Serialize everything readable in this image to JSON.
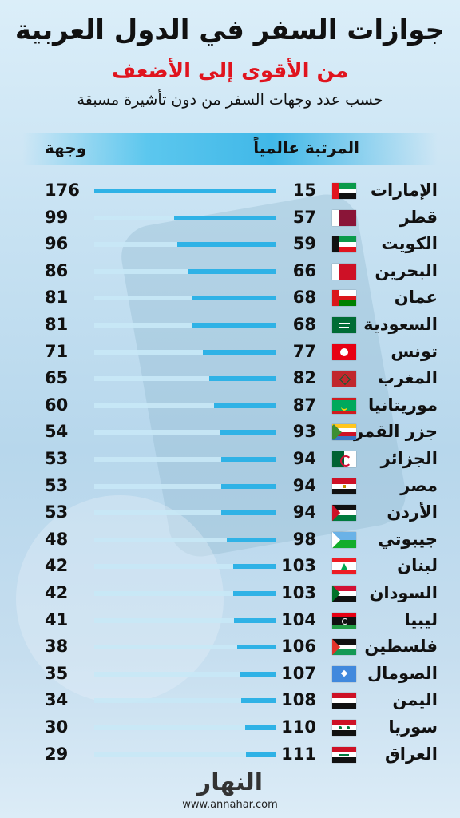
{
  "title": "جوازات السفر في الدول العربية",
  "subtitle": "من الأقوى إلى الأضعف",
  "note": "حسب عدد وجهات السفر من دون تأشيرة مسبقة",
  "header": {
    "rank_label": "المرتبة عالمياً",
    "dest_label": "وجهة"
  },
  "brand": {
    "name": "النهار",
    "url": "www.annahar.com"
  },
  "colors": {
    "bar": "#2fb2e6",
    "track": "#c8e8f6",
    "subtitle": "#e0141e"
  },
  "chart_data": {
    "type": "bar",
    "max_value": 176,
    "rows": [
      {
        "country": "الإمارات",
        "flag": "uae-flag",
        "rank": "15",
        "destinations": 176
      },
      {
        "country": "قطر",
        "flag": "qatar-flag",
        "rank": "57",
        "destinations": 99
      },
      {
        "country": "الكويت",
        "flag": "kuwait-flag",
        "rank": "59",
        "destinations": 96
      },
      {
        "country": "البحرين",
        "flag": "bahrain-flag",
        "rank": "66",
        "destinations": 86
      },
      {
        "country": "عمان",
        "flag": "oman-flag",
        "rank": "68",
        "destinations": 81
      },
      {
        "country": "السعودية",
        "flag": "saudi-flag",
        "rank": "68",
        "destinations": 81
      },
      {
        "country": "تونس",
        "flag": "tunisia-flag",
        "rank": "77",
        "destinations": 71
      },
      {
        "country": "المغرب",
        "flag": "morocco-flag",
        "rank": "82",
        "destinations": 65
      },
      {
        "country": "موريتانيا",
        "flag": "mauritania-flag",
        "rank": "87",
        "destinations": 60
      },
      {
        "country": "جزر القمر",
        "flag": "comoros-flag",
        "rank": "93",
        "destinations": 54
      },
      {
        "country": "الجزائر",
        "flag": "algeria-flag",
        "rank": "94",
        "destinations": 53
      },
      {
        "country": "مصر",
        "flag": "egypt-flag",
        "rank": "94",
        "destinations": 53
      },
      {
        "country": "الأردن",
        "flag": "jordan-flag",
        "rank": "94",
        "destinations": 53
      },
      {
        "country": "جيبوتي",
        "flag": "djibouti-flag",
        "rank": "98",
        "destinations": 48
      },
      {
        "country": "لبنان",
        "flag": "lebanon-flag",
        "rank": "103",
        "destinations": 42
      },
      {
        "country": "السودان",
        "flag": "sudan-flag",
        "rank": "103",
        "destinations": 42
      },
      {
        "country": "ليبيا",
        "flag": "libya-flag",
        "rank": "104",
        "destinations": 41
      },
      {
        "country": "فلسطين",
        "flag": "palestine-flag",
        "rank": "106",
        "destinations": 38
      },
      {
        "country": "الصومال",
        "flag": "somalia-flag",
        "rank": "107",
        "destinations": 35
      },
      {
        "country": "اليمن",
        "flag": "yemen-flag",
        "rank": "108",
        "destinations": 34
      },
      {
        "country": "سوريا",
        "flag": "syria-flag",
        "rank": "110",
        "destinations": 30
      },
      {
        "country": "العراق",
        "flag": "iraq-flag",
        "rank": "111",
        "destinations": 29
      }
    ]
  }
}
